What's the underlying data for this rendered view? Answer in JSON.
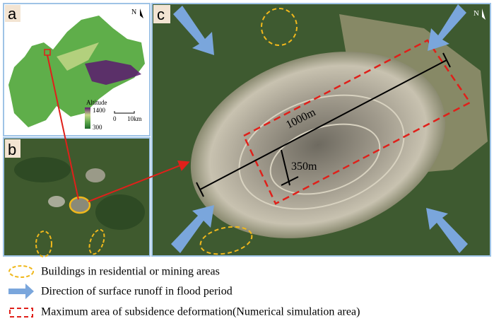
{
  "panels": {
    "a": {
      "label": "a",
      "north": "N",
      "legend_title": "Altitude",
      "legend_max": "1400",
      "legend_min": "300",
      "scale_start": "0",
      "scale_end": "10km"
    },
    "b": {
      "label": "b"
    },
    "c": {
      "label": "c",
      "north": "N",
      "length_label": "1000m",
      "depth_label": "350m"
    }
  },
  "legend": [
    "Buildings in residential or mining areas",
    "Direction of surface runoff in flood period",
    "Maximum area of subsidence deformation(Numerical simulation area)"
  ]
}
